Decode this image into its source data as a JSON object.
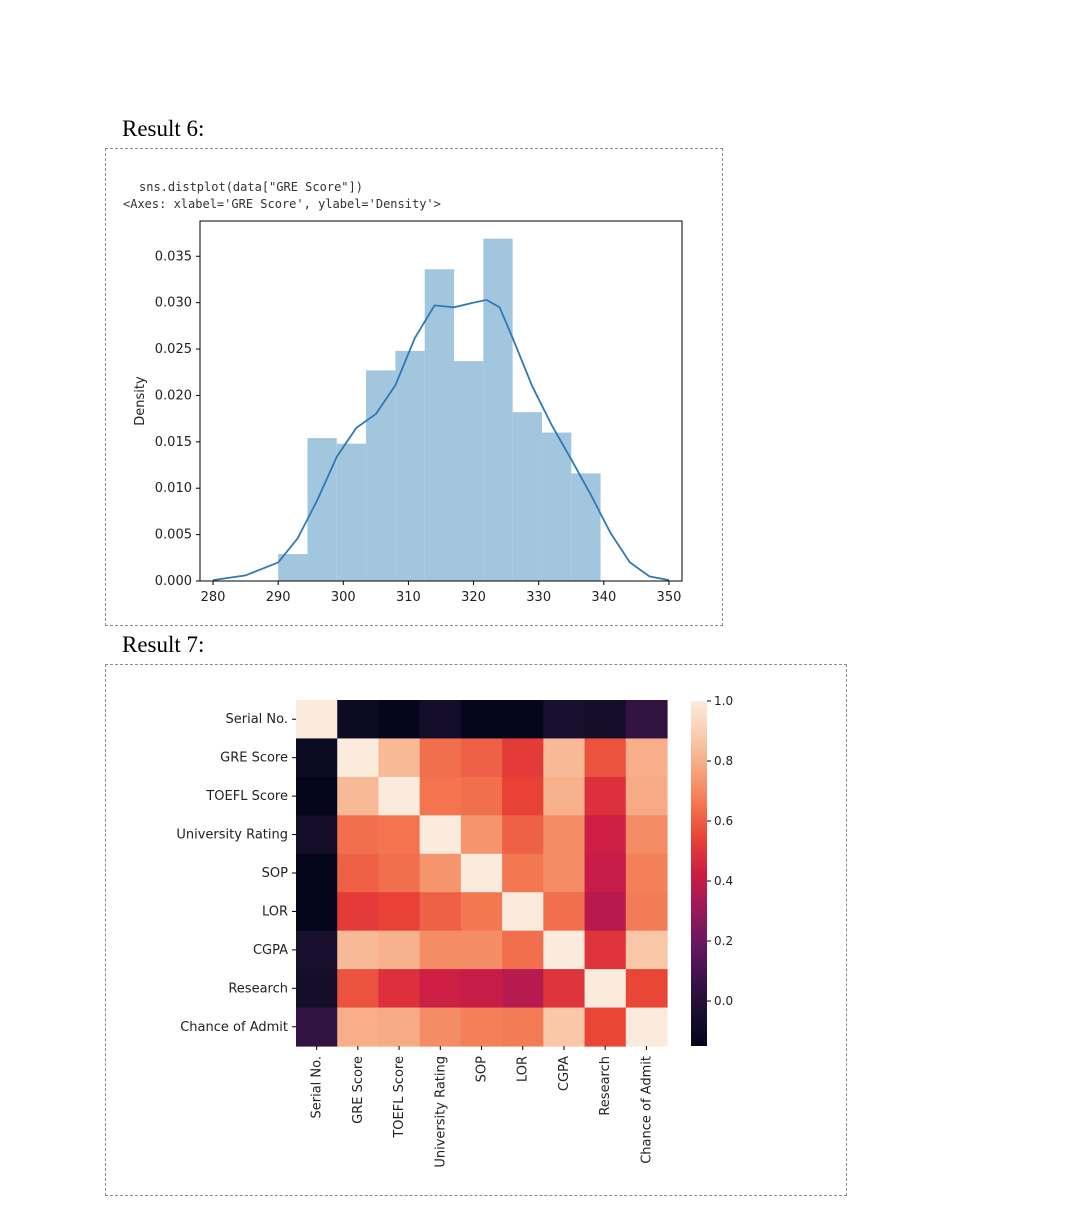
{
  "results": [
    {
      "title": "Result 6:",
      "code": "sns.distplot(data[\"GRE Score\"])",
      "output": "<Axes: xlabel='GRE Score', ylabel='Density'>"
    },
    {
      "title": "Result 7:"
    }
  ],
  "chart_data": [
    {
      "type": "bar",
      "subtype": "histogram with KDE line",
      "xlabel": "",
      "ylabel": "Density",
      "xlim": [
        278,
        352
      ],
      "ylim": [
        0,
        0.0388
      ],
      "xticks": [
        "280",
        "290",
        "300",
        "310",
        "320",
        "330",
        "340",
        "350"
      ],
      "yticks": [
        "0.000",
        "0.005",
        "0.010",
        "0.015",
        "0.020",
        "0.025",
        "0.030",
        "0.035"
      ],
      "bar_color": "#a3c6df",
      "line_color": "#2f79b5",
      "bins": [
        {
          "x0": 290.0,
          "x1": 294.5,
          "density": 0.0029
        },
        {
          "x0": 294.5,
          "x1": 299.0,
          "density": 0.0154
        },
        {
          "x0": 299.0,
          "x1": 303.5,
          "density": 0.0148
        },
        {
          "x0": 303.5,
          "x1": 308.0,
          "density": 0.0227
        },
        {
          "x0": 308.0,
          "x1": 312.5,
          "density": 0.0248
        },
        {
          "x0": 312.5,
          "x1": 317.0,
          "density": 0.0336
        },
        {
          "x0": 317.0,
          "x1": 321.5,
          "density": 0.0237
        },
        {
          "x0": 321.5,
          "x1": 326.0,
          "density": 0.0369
        },
        {
          "x0": 326.0,
          "x1": 330.5,
          "density": 0.0182
        },
        {
          "x0": 330.5,
          "x1": 335.0,
          "density": 0.016
        },
        {
          "x0": 335.0,
          "x1": 339.5,
          "density": 0.0116
        }
      ],
      "kde": {
        "x": [
          280,
          285,
          290,
          293,
          296,
          299,
          302,
          305,
          308,
          311,
          314,
          317,
          320,
          322,
          324,
          326,
          329,
          332,
          335,
          338,
          341,
          344,
          347,
          350
        ],
        "y": [
          0.0001,
          0.0006,
          0.002,
          0.0046,
          0.0087,
          0.0134,
          0.0165,
          0.018,
          0.0211,
          0.0262,
          0.0297,
          0.0295,
          0.03,
          0.0303,
          0.0295,
          0.0262,
          0.021,
          0.0168,
          0.0131,
          0.0093,
          0.0052,
          0.002,
          0.0005,
          0.0001
        ]
      }
    },
    {
      "type": "heatmap",
      "labels": [
        "Serial No.",
        "GRE Score",
        "TOEFL Score",
        "University Rating",
        "SOP",
        "LOR ",
        "CGPA",
        "Research",
        "Chance of Admit "
      ],
      "colorbar_ticks": [
        "1.0",
        "0.8",
        "0.6",
        "0.4",
        "0.2",
        "0.0"
      ],
      "vmin": -0.15,
      "vmax": 1.0,
      "colormap": "rocket",
      "matrix": [
        [
          1.0,
          -0.1,
          -0.14,
          -0.07,
          -0.14,
          -0.14,
          -0.05,
          -0.06,
          0.04
        ],
        [
          -0.1,
          1.0,
          0.83,
          0.64,
          0.61,
          0.52,
          0.83,
          0.58,
          0.8
        ],
        [
          -0.14,
          0.83,
          1.0,
          0.65,
          0.64,
          0.54,
          0.81,
          0.49,
          0.79
        ],
        [
          -0.07,
          0.64,
          0.65,
          1.0,
          0.73,
          0.61,
          0.71,
          0.43,
          0.71
        ],
        [
          -0.14,
          0.61,
          0.64,
          0.73,
          1.0,
          0.66,
          0.71,
          0.41,
          0.68
        ],
        [
          -0.14,
          0.52,
          0.54,
          0.61,
          0.66,
          1.0,
          0.64,
          0.37,
          0.67
        ],
        [
          -0.05,
          0.83,
          0.81,
          0.71,
          0.71,
          0.64,
          1.0,
          0.5,
          0.87
        ],
        [
          -0.06,
          0.58,
          0.49,
          0.43,
          0.41,
          0.37,
          0.5,
          1.0,
          0.55
        ],
        [
          0.04,
          0.8,
          0.79,
          0.71,
          0.68,
          0.67,
          0.87,
          0.55,
          1.0
        ]
      ]
    }
  ]
}
